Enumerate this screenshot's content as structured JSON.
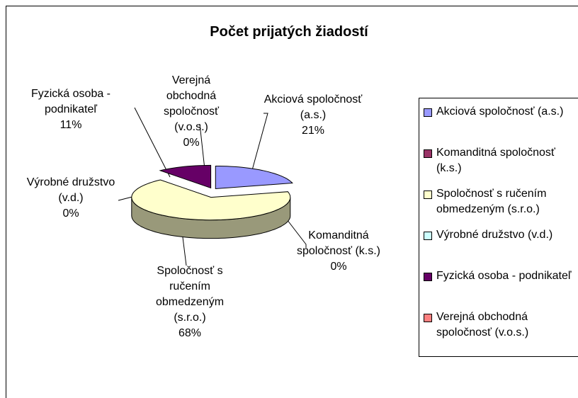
{
  "chart_data": {
    "type": "pie3d",
    "title": "Počet prijatých žiadostí",
    "categories": [
      "Akciová spoločnosť (a.s.)",
      "Komanditná spoločnosť (k.s.)",
      "Spoločnosť s ručením obmedzeným (s.r.o.)",
      "Výrobné družstvo (v.d.)",
      "Fyzická osoba - podnikateľ",
      "Verejná obchodná spoločnosť (v.o.s.)"
    ],
    "values": [
      21,
      0,
      68,
      0,
      11,
      0
    ],
    "value_labels": [
      "21%",
      "0%",
      "68%",
      "0%",
      "11%",
      "0%"
    ],
    "colors": [
      "#9999ff",
      "#993366",
      "#ffffcc",
      "#ccffff",
      "#660066",
      "#ff8080"
    ],
    "legend": "right"
  }
}
